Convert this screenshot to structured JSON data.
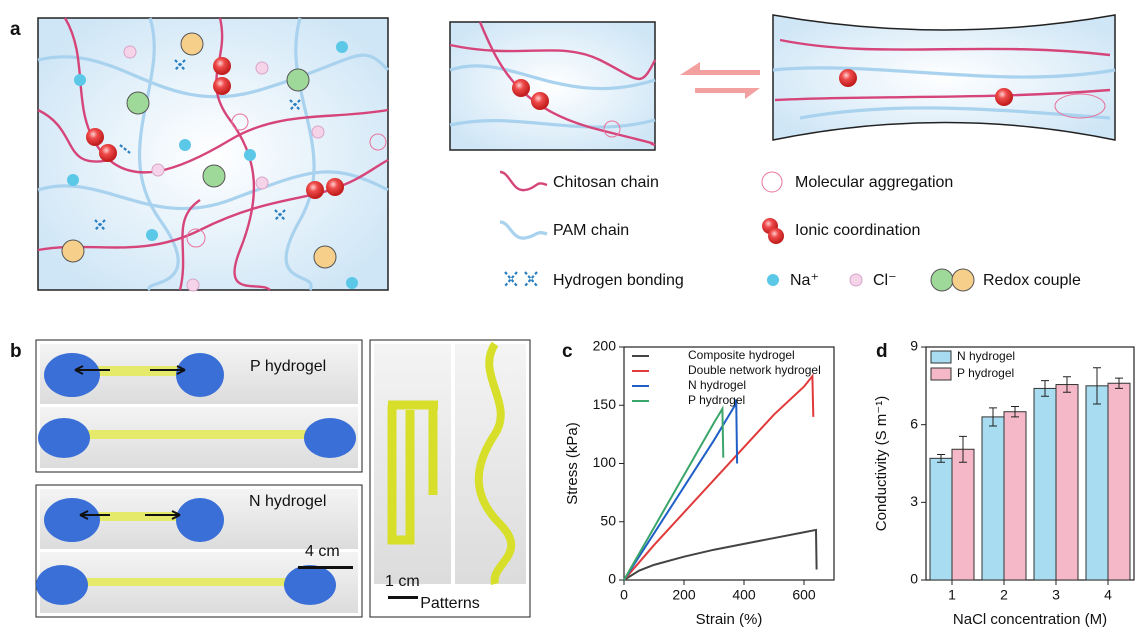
{
  "panel_a": {
    "label": "a",
    "legend": [
      "Chitosan chain",
      "Molecular aggregation",
      "PAM chain",
      "Ionic coordination",
      "Hydrogen bonding",
      "Na⁺",
      "Cl⁻",
      "Redox couple"
    ]
  },
  "panel_b": {
    "label": "b",
    "photo_top": "P hydrogel",
    "photo_bottom": "N hydrogel",
    "scale_stretch": "4 cm",
    "scale_pattern": "1 cm",
    "patterns": "Patterns"
  },
  "chart_data": [
    {
      "type": "line",
      "panel_label": "c",
      "x_label": "Strain (%)",
      "y_label": "Stress (kPa)",
      "xlim": [
        0,
        700
      ],
      "xticks": [
        0,
        200,
        400,
        600
      ],
      "ylim": [
        0,
        200
      ],
      "yticks": [
        0,
        50,
        100,
        150,
        200
      ],
      "series": [
        {
          "name": "Composite hydrogel",
          "color": "#444444",
          "x": [
            0,
            50,
            100,
            200,
            300,
            400,
            500,
            600,
            640,
            642
          ],
          "values": [
            0,
            8,
            13,
            20,
            26,
            31,
            36,
            41,
            43,
            9
          ]
        },
        {
          "name": "Double network hydrogel",
          "color": "#e03a3a",
          "x": [
            0,
            100,
            200,
            300,
            400,
            500,
            600,
            628,
            631
          ],
          "values": [
            0,
            30,
            58,
            86,
            114,
            142,
            166,
            175,
            140
          ]
        },
        {
          "name": "N hydrogel",
          "color": "#1f5fc8",
          "x": [
            0,
            100,
            200,
            300,
            370,
            374,
            377
          ],
          "values": [
            0,
            40,
            80,
            120,
            150,
            155,
            100
          ]
        },
        {
          "name": "P hydrogel",
          "color": "#3aa66a",
          "x": [
            0,
            100,
            200,
            300,
            328,
            331
          ],
          "values": [
            0,
            45,
            90,
            135,
            147,
            105
          ]
        }
      ]
    },
    {
      "type": "bar",
      "panel_label": "d",
      "x_label": "NaCl concentration (M)",
      "y_label": "Conductivity (S m⁻¹)",
      "categories": [
        "1",
        "2",
        "3",
        "4"
      ],
      "ylim": [
        0,
        9
      ],
      "yticks": [
        0,
        3,
        6,
        9
      ],
      "series": [
        {
          "name": "N hydrogel",
          "color": "#a8dcf0",
          "values": [
            4.7,
            6.3,
            7.4,
            7.5
          ],
          "errors": [
            0.15,
            0.35,
            0.3,
            0.7
          ]
        },
        {
          "name": "P hydrogel",
          "color": "#f4b8c8",
          "values": [
            5.05,
            6.5,
            7.55,
            7.6
          ],
          "errors": [
            0.5,
            0.2,
            0.3,
            0.2
          ]
        }
      ]
    }
  ]
}
